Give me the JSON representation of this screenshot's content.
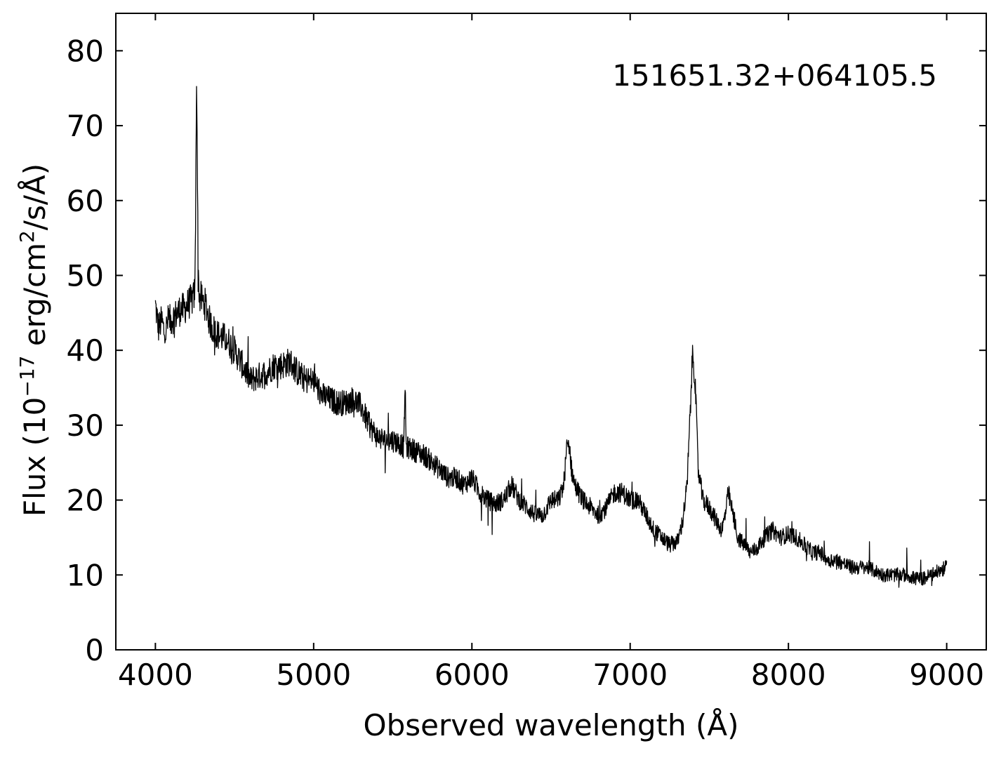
{
  "chart_data": {
    "type": "line",
    "xlabel": "Observed wavelength (Å)",
    "ylabel": {
      "base": "Flux (10",
      "exp": "−17",
      "mid": " erg/cm",
      "exp2": "2",
      "tail": "/s/Å)"
    },
    "annotation": "151651.32+064105.5",
    "xlim": [
      3750,
      9250
    ],
    "ylim": [
      0,
      85
    ],
    "xticks": [
      4000,
      5000,
      6000,
      7000,
      8000,
      9000
    ],
    "yticks": [
      0,
      10,
      20,
      30,
      40,
      50,
      60,
      70,
      80
    ],
    "line_color": "#000000",
    "grid": false,
    "series": [
      {
        "x": [
          4000,
          4020,
          4040,
          4060,
          4080,
          4100,
          4120,
          4140,
          4160,
          4180,
          4200,
          4220,
          4240,
          4250,
          4255,
          4260,
          4265,
          4270,
          4280,
          4290,
          4300,
          4320,
          4340,
          4360,
          4400,
          4450,
          4500,
          4550,
          4600,
          4650,
          4700,
          4750,
          4800,
          4850,
          4900,
          4950,
          5000,
          5050,
          5100,
          5150,
          5200,
          5250,
          5300,
          5350,
          5400,
          5450,
          5500,
          5550,
          5570,
          5577,
          5585,
          5600,
          5650,
          5700,
          5750,
          5800,
          5850,
          5900,
          5950,
          6000,
          6050,
          6100,
          6150,
          6200,
          6250,
          6300,
          6350,
          6400,
          6450,
          6500,
          6550,
          6580,
          6600,
          6615,
          6630,
          6650,
          6700,
          6750,
          6800,
          6850,
          6900,
          6950,
          7000,
          7050,
          7100,
          7150,
          7200,
          7250,
          7300,
          7330,
          7360,
          7380,
          7395,
          7410,
          7430,
          7460,
          7500,
          7550,
          7580,
          7600,
          7620,
          7640,
          7680,
          7720,
          7760,
          7800,
          7850,
          7900,
          7950,
          8000,
          8050,
          8100,
          8150,
          8200,
          8250,
          8300,
          8350,
          8400,
          8450,
          8500,
          8550,
          8600,
          8650,
          8700,
          8750,
          8800,
          8850,
          8900,
          8950,
          9000
        ],
        "y": [
          46,
          43,
          44,
          42,
          44,
          44,
          44.5,
          45,
          45.5,
          45.5,
          46,
          46.5,
          47,
          48,
          60,
          78,
          66,
          50,
          47,
          47,
          46.5,
          46,
          44,
          43,
          42,
          41.5,
          40,
          38,
          36,
          36.5,
          37,
          38,
          38,
          38.5,
          37,
          36,
          36,
          34,
          33.5,
          33,
          33,
          33.5,
          32.5,
          30,
          28.5,
          28,
          28,
          27.5,
          27,
          36,
          27,
          27,
          26.5,
          26,
          25,
          24,
          23,
          23,
          22,
          23,
          21,
          20,
          19.5,
          20,
          22,
          20,
          19,
          18,
          18,
          20,
          20,
          22,
          27,
          27.5,
          24,
          22,
          20,
          19,
          18,
          19,
          21,
          21,
          20,
          20,
          18,
          16,
          15,
          14,
          14.5,
          17,
          22,
          32,
          40,
          36,
          24,
          20,
          19,
          17,
          16,
          18,
          21,
          19,
          15,
          14,
          13,
          13.5,
          15,
          16,
          15,
          15.5,
          15,
          14,
          13,
          13,
          12,
          12,
          11.5,
          11,
          11,
          11,
          10.5,
          10,
          10,
          10,
          10,
          9.5,
          9.5,
          10,
          10.5,
          11
        ]
      }
    ]
  }
}
